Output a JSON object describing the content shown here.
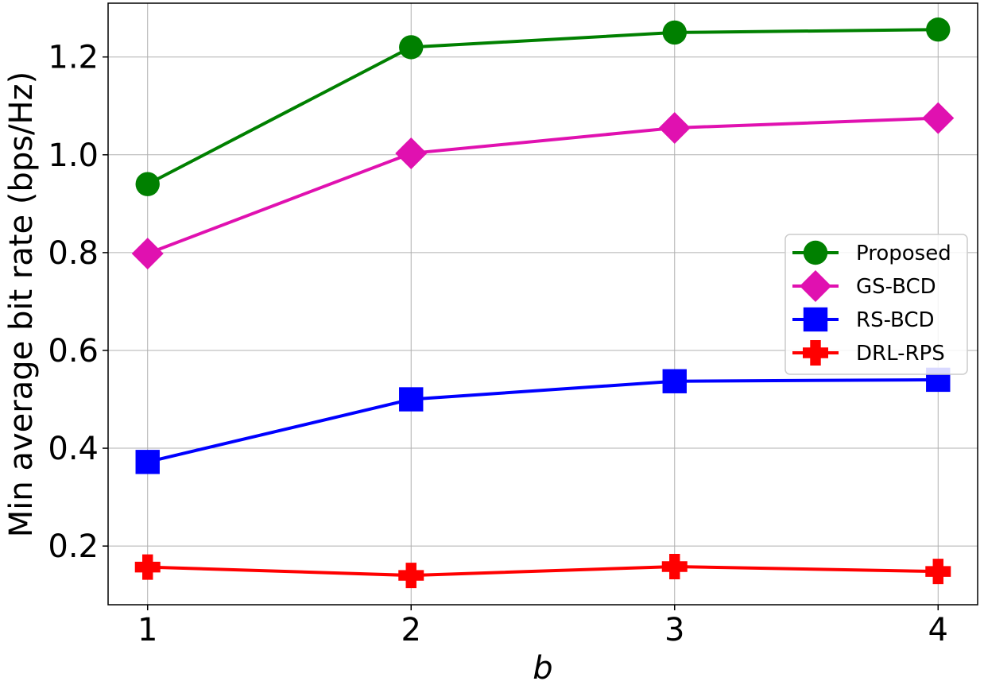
{
  "chart_data": {
    "type": "line",
    "x": [
      1,
      2,
      3,
      4
    ],
    "xticks": [
      "1",
      "2",
      "3",
      "4"
    ],
    "yticks": [
      "0.2",
      "0.4",
      "0.6",
      "0.8",
      "1.0",
      "1.2"
    ],
    "xlabel": "b",
    "ylabel": "Min average bit rate (bps/Hz)",
    "xlim": [
      0.85,
      4.15
    ],
    "ylim": [
      0.08,
      1.31
    ],
    "grid": true,
    "legend_position": "center-right",
    "series": [
      {
        "name": "Proposed",
        "values": [
          0.94,
          1.22,
          1.25,
          1.256
        ],
        "color": "#008000",
        "marker": "circle"
      },
      {
        "name": "GS-BCD",
        "values": [
          0.798,
          1.003,
          1.055,
          1.075
        ],
        "color": "#e011b0",
        "marker": "diamond"
      },
      {
        "name": "RS-BCD",
        "values": [
          0.372,
          0.5,
          0.537,
          0.54
        ],
        "color": "#0000ff",
        "marker": "square"
      },
      {
        "name": "DRL-RPS",
        "values": [
          0.157,
          0.14,
          0.158,
          0.148
        ],
        "color": "#ff0000",
        "marker": "plus"
      }
    ]
  }
}
